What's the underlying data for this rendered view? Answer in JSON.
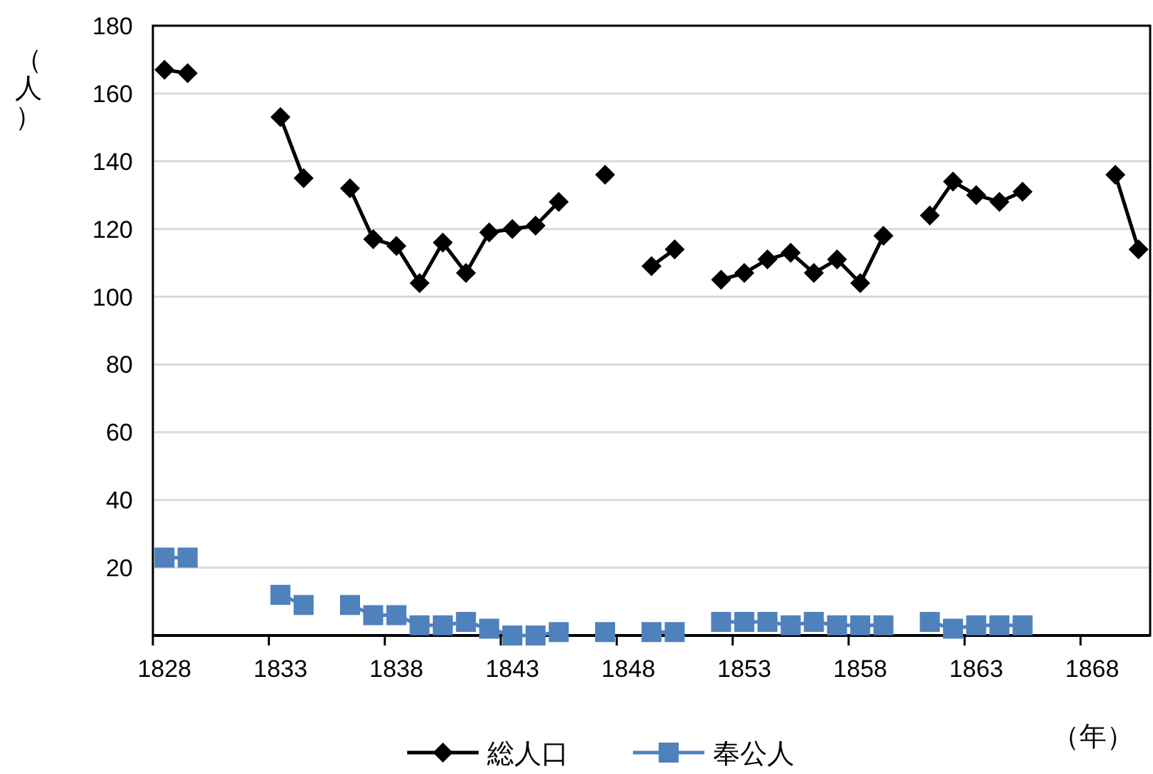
{
  "chart_data": {
    "type": "line",
    "ylabel": "（人）",
    "xlabel": "（年）",
    "categories": [
      "1828",
      null,
      null,
      null,
      null,
      "1833",
      null,
      null,
      null,
      null,
      "1838",
      null,
      null,
      null,
      null,
      "1843",
      null,
      null,
      null,
      null,
      "1848",
      null,
      null,
      null,
      null,
      "1853",
      null,
      null,
      null,
      null,
      "1858",
      null,
      null,
      null,
      null,
      "1863",
      null,
      null,
      null,
      null,
      "1868",
      null,
      null
    ],
    "ylim": [
      0,
      180
    ],
    "yticks": [
      {
        "value": 0,
        "label": null
      },
      20,
      40,
      60,
      80,
      100,
      120,
      140,
      160,
      180
    ],
    "grid": "y",
    "legend": "bottom",
    "line_style": "solid",
    "series": [
      {
        "name": "総人口",
        "color": "#000000",
        "marker": "diamond",
        "values": [
          167,
          166,
          null,
          null,
          null,
          153,
          135,
          null,
          132,
          117,
          115,
          104,
          116,
          107,
          119,
          120,
          121,
          128,
          null,
          136,
          null,
          109,
          114,
          null,
          105,
          107,
          111,
          113,
          107,
          111,
          104,
          118,
          null,
          124,
          134,
          130,
          128,
          131,
          null,
          null,
          null,
          136,
          114
        ]
      },
      {
        "name": "奉公人",
        "color": "#4f81bd",
        "marker": "square",
        "values": [
          23,
          23,
          null,
          null,
          null,
          12,
          9,
          null,
          9,
          6,
          6,
          3,
          3,
          4,
          2,
          0,
          0,
          1,
          null,
          1,
          null,
          1,
          1,
          null,
          4,
          4,
          4,
          3,
          4,
          3,
          3,
          3,
          null,
          4,
          2,
          3,
          3,
          3,
          null,
          null,
          null,
          null,
          null
        ]
      }
    ]
  }
}
